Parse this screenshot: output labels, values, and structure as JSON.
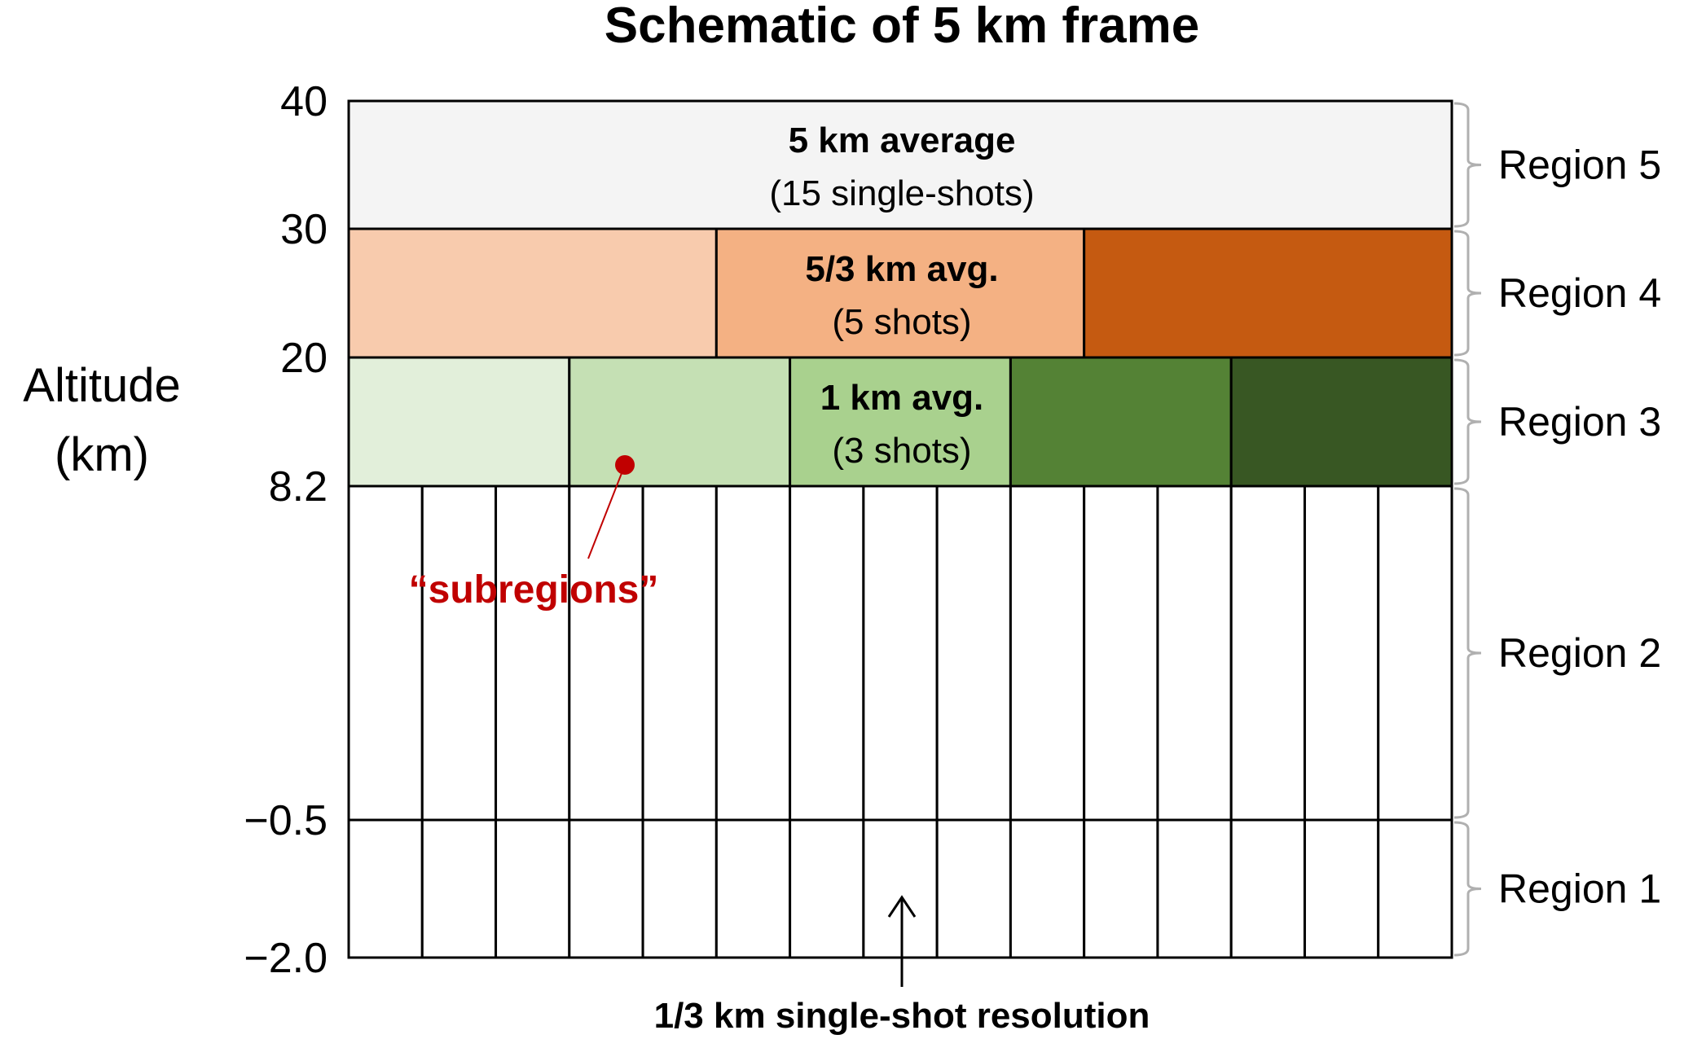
{
  "title": "Schematic of 5 km frame",
  "y_axis": {
    "label_line1": "Altitude",
    "label_line2": "(km)",
    "ticks": [
      "40",
      "30",
      "20",
      "8.2",
      "−0.5",
      "−2.0"
    ]
  },
  "regions": [
    "Region 5",
    "Region 4",
    "Region 3",
    "Region 2",
    "Region 1"
  ],
  "layers": {
    "region5": {
      "label": "5 km average",
      "sublabel": "(15 single-shots)",
      "color": "#f4f4f4",
      "cells": 1
    },
    "region4": {
      "label": "5/3 km avg.",
      "sublabel": "(5 shots)",
      "colors": [
        "#f8cbad",
        "#f4b183",
        "#c55a11"
      ],
      "cells": 3
    },
    "region3": {
      "label": "1 km avg.",
      "sublabel": "(3 shots)",
      "colors": [
        "#e2efda",
        "#c5e0b4",
        "#a9d18e",
        "#548235",
        "#385723"
      ],
      "cells": 5
    },
    "region2_1": {
      "cells": 15,
      "color": "#ffffff"
    }
  },
  "annotations": {
    "subregions": "“subregions”",
    "subregions_color": "#c00000",
    "single_shot": "1/3 km single-shot resolution"
  }
}
